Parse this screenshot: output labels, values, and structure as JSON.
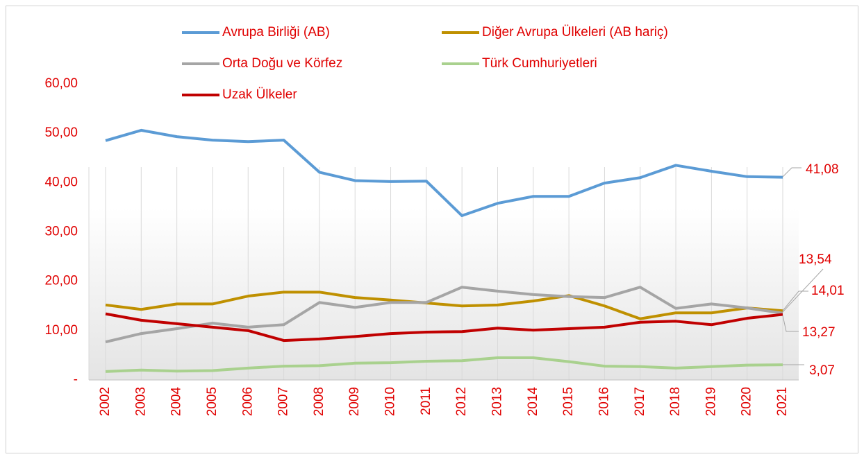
{
  "chart_data": {
    "type": "line",
    "categories": [
      "2002",
      "2003",
      "2004",
      "2005",
      "2006",
      "2007",
      "2008",
      "2009",
      "2010",
      "2011",
      "2012",
      "2013",
      "2014",
      "2015",
      "2016",
      "2017",
      "2018",
      "2019",
      "2020",
      "2021"
    ],
    "ylim": [
      0,
      60
    ],
    "yticks": [
      {
        "value": 0,
        "label": "-"
      },
      {
        "value": 10,
        "label": "10,00"
      },
      {
        "value": 20,
        "label": "20,00"
      },
      {
        "value": 30,
        "label": "30,00"
      },
      {
        "value": 40,
        "label": "40,00"
      },
      {
        "value": 50,
        "label": "50,00"
      },
      {
        "value": 60,
        "label": "60,00"
      }
    ],
    "grid": "x",
    "series": [
      {
        "name": "Avrupa Birliği (AB)",
        "color": "#5b9bd5",
        "values": [
          48.5,
          50.6,
          49.3,
          48.6,
          48.3,
          48.6,
          42.1,
          40.4,
          40.2,
          40.3,
          33.3,
          35.8,
          37.2,
          37.2,
          39.9,
          41.0,
          43.5,
          42.3,
          41.2,
          41.08
        ],
        "value_labels": [
          null,
          null,
          null,
          null,
          null,
          null,
          null,
          null,
          null,
          null,
          null,
          null,
          null,
          null,
          null,
          null,
          null,
          null,
          null,
          "41,08"
        ]
      },
      {
        "name": "Diğer Avrupa Ülkeleri (AB hariç)",
        "color": "#bf9000",
        "values": [
          15.2,
          14.3,
          15.4,
          15.4,
          17.0,
          17.8,
          17.8,
          16.7,
          16.2,
          15.6,
          15.0,
          15.2,
          16.0,
          17.1,
          15.0,
          12.4,
          13.6,
          13.6,
          14.6,
          14.01
        ],
        "value_labels": [
          null,
          null,
          null,
          null,
          null,
          null,
          null,
          null,
          null,
          null,
          null,
          null,
          null,
          null,
          null,
          null,
          null,
          null,
          null,
          "14,01"
        ]
      },
      {
        "name": "Orta Doğu ve Körfez",
        "color": "#a5a5a5",
        "values": [
          7.7,
          9.4,
          10.4,
          11.5,
          10.7,
          11.2,
          15.7,
          14.7,
          15.7,
          15.7,
          18.8,
          18.0,
          17.3,
          16.9,
          16.7,
          18.8,
          14.5,
          15.4,
          14.6,
          13.54
        ],
        "value_labels": [
          null,
          null,
          null,
          null,
          null,
          null,
          null,
          null,
          null,
          null,
          null,
          null,
          null,
          null,
          null,
          null,
          null,
          null,
          null,
          "13,54"
        ]
      },
      {
        "name": "Türk Cumhuriyetleri",
        "color": "#a9d18e",
        "values": [
          1.7,
          2.0,
          1.8,
          1.9,
          2.4,
          2.8,
          2.9,
          3.4,
          3.5,
          3.8,
          3.9,
          4.5,
          4.5,
          3.7,
          2.8,
          2.7,
          2.4,
          2.7,
          3.0,
          3.07
        ],
        "value_labels": [
          null,
          null,
          null,
          null,
          null,
          null,
          null,
          null,
          null,
          null,
          null,
          null,
          null,
          null,
          null,
          null,
          null,
          null,
          null,
          "3,07"
        ]
      },
      {
        "name": "Uzak Ülkeler",
        "color": "#c00000",
        "values": [
          13.4,
          12.1,
          11.4,
          10.7,
          10.0,
          8.0,
          8.3,
          8.8,
          9.4,
          9.7,
          9.8,
          10.5,
          10.1,
          10.4,
          10.7,
          11.7,
          11.9,
          11.2,
          12.5,
          13.27
        ],
        "value_labels": [
          null,
          null,
          null,
          null,
          null,
          null,
          null,
          null,
          null,
          null,
          null,
          null,
          null,
          null,
          null,
          null,
          null,
          null,
          null,
          "13,27"
        ]
      }
    ]
  }
}
